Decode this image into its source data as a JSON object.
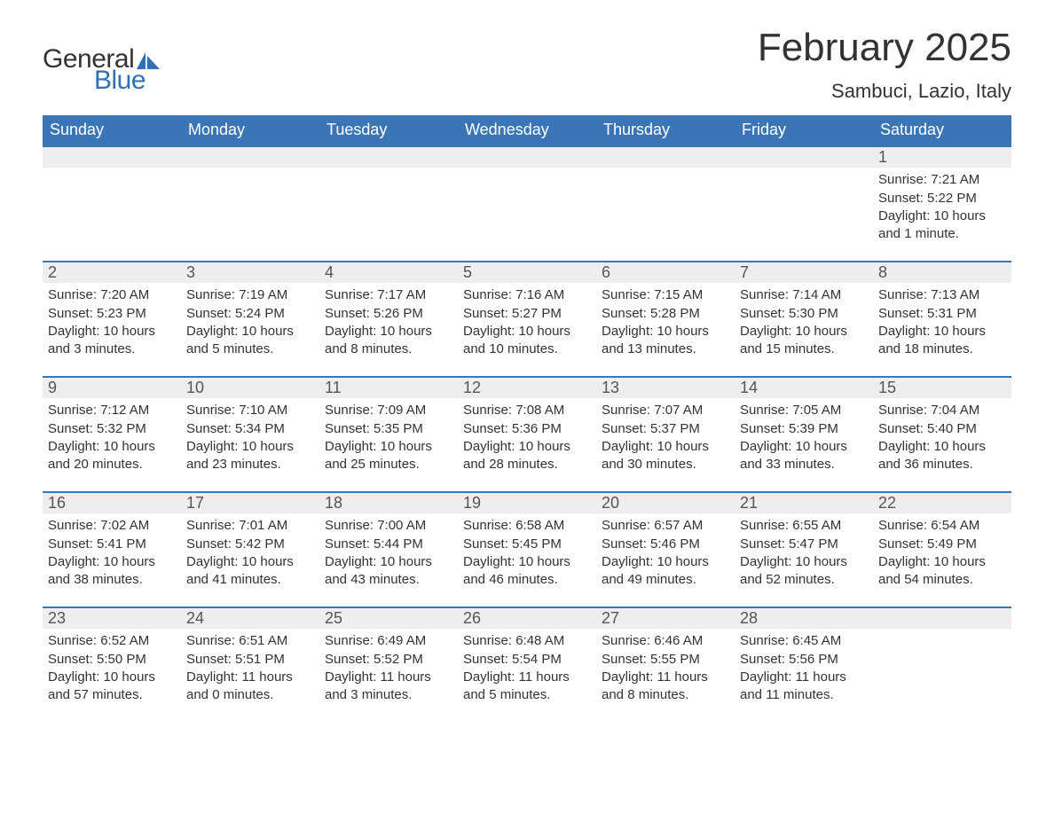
{
  "brand": {
    "general": "General",
    "blue": "Blue",
    "sail_color": "#2f6fb2"
  },
  "title": "February 2025",
  "location": "Sambuci, Lazio, Italy",
  "colors": {
    "header_bg": "#3a76b6",
    "header_text": "#ffffff",
    "strip_bg": "#eeeeee",
    "strip_border": "#3a76b6",
    "text": "#333333",
    "daynum": "#555555",
    "page_bg": "#ffffff"
  },
  "day_names": [
    "Sunday",
    "Monday",
    "Tuesday",
    "Wednesday",
    "Thursday",
    "Friday",
    "Saturday"
  ],
  "weeks": [
    [
      null,
      null,
      null,
      null,
      null,
      null,
      {
        "n": "1",
        "sunrise": "Sunrise: 7:21 AM",
        "sunset": "Sunset: 5:22 PM",
        "dl1": "Daylight: 10 hours",
        "dl2": "and 1 minute."
      }
    ],
    [
      {
        "n": "2",
        "sunrise": "Sunrise: 7:20 AM",
        "sunset": "Sunset: 5:23 PM",
        "dl1": "Daylight: 10 hours",
        "dl2": "and 3 minutes."
      },
      {
        "n": "3",
        "sunrise": "Sunrise: 7:19 AM",
        "sunset": "Sunset: 5:24 PM",
        "dl1": "Daylight: 10 hours",
        "dl2": "and 5 minutes."
      },
      {
        "n": "4",
        "sunrise": "Sunrise: 7:17 AM",
        "sunset": "Sunset: 5:26 PM",
        "dl1": "Daylight: 10 hours",
        "dl2": "and 8 minutes."
      },
      {
        "n": "5",
        "sunrise": "Sunrise: 7:16 AM",
        "sunset": "Sunset: 5:27 PM",
        "dl1": "Daylight: 10 hours",
        "dl2": "and 10 minutes."
      },
      {
        "n": "6",
        "sunrise": "Sunrise: 7:15 AM",
        "sunset": "Sunset: 5:28 PM",
        "dl1": "Daylight: 10 hours",
        "dl2": "and 13 minutes."
      },
      {
        "n": "7",
        "sunrise": "Sunrise: 7:14 AM",
        "sunset": "Sunset: 5:30 PM",
        "dl1": "Daylight: 10 hours",
        "dl2": "and 15 minutes."
      },
      {
        "n": "8",
        "sunrise": "Sunrise: 7:13 AM",
        "sunset": "Sunset: 5:31 PM",
        "dl1": "Daylight: 10 hours",
        "dl2": "and 18 minutes."
      }
    ],
    [
      {
        "n": "9",
        "sunrise": "Sunrise: 7:12 AM",
        "sunset": "Sunset: 5:32 PM",
        "dl1": "Daylight: 10 hours",
        "dl2": "and 20 minutes."
      },
      {
        "n": "10",
        "sunrise": "Sunrise: 7:10 AM",
        "sunset": "Sunset: 5:34 PM",
        "dl1": "Daylight: 10 hours",
        "dl2": "and 23 minutes."
      },
      {
        "n": "11",
        "sunrise": "Sunrise: 7:09 AM",
        "sunset": "Sunset: 5:35 PM",
        "dl1": "Daylight: 10 hours",
        "dl2": "and 25 minutes."
      },
      {
        "n": "12",
        "sunrise": "Sunrise: 7:08 AM",
        "sunset": "Sunset: 5:36 PM",
        "dl1": "Daylight: 10 hours",
        "dl2": "and 28 minutes."
      },
      {
        "n": "13",
        "sunrise": "Sunrise: 7:07 AM",
        "sunset": "Sunset: 5:37 PM",
        "dl1": "Daylight: 10 hours",
        "dl2": "and 30 minutes."
      },
      {
        "n": "14",
        "sunrise": "Sunrise: 7:05 AM",
        "sunset": "Sunset: 5:39 PM",
        "dl1": "Daylight: 10 hours",
        "dl2": "and 33 minutes."
      },
      {
        "n": "15",
        "sunrise": "Sunrise: 7:04 AM",
        "sunset": "Sunset: 5:40 PM",
        "dl1": "Daylight: 10 hours",
        "dl2": "and 36 minutes."
      }
    ],
    [
      {
        "n": "16",
        "sunrise": "Sunrise: 7:02 AM",
        "sunset": "Sunset: 5:41 PM",
        "dl1": "Daylight: 10 hours",
        "dl2": "and 38 minutes."
      },
      {
        "n": "17",
        "sunrise": "Sunrise: 7:01 AM",
        "sunset": "Sunset: 5:42 PM",
        "dl1": "Daylight: 10 hours",
        "dl2": "and 41 minutes."
      },
      {
        "n": "18",
        "sunrise": "Sunrise: 7:00 AM",
        "sunset": "Sunset: 5:44 PM",
        "dl1": "Daylight: 10 hours",
        "dl2": "and 43 minutes."
      },
      {
        "n": "19",
        "sunrise": "Sunrise: 6:58 AM",
        "sunset": "Sunset: 5:45 PM",
        "dl1": "Daylight: 10 hours",
        "dl2": "and 46 minutes."
      },
      {
        "n": "20",
        "sunrise": "Sunrise: 6:57 AM",
        "sunset": "Sunset: 5:46 PM",
        "dl1": "Daylight: 10 hours",
        "dl2": "and 49 minutes."
      },
      {
        "n": "21",
        "sunrise": "Sunrise: 6:55 AM",
        "sunset": "Sunset: 5:47 PM",
        "dl1": "Daylight: 10 hours",
        "dl2": "and 52 minutes."
      },
      {
        "n": "22",
        "sunrise": "Sunrise: 6:54 AM",
        "sunset": "Sunset: 5:49 PM",
        "dl1": "Daylight: 10 hours",
        "dl2": "and 54 minutes."
      }
    ],
    [
      {
        "n": "23",
        "sunrise": "Sunrise: 6:52 AM",
        "sunset": "Sunset: 5:50 PM",
        "dl1": "Daylight: 10 hours",
        "dl2": "and 57 minutes."
      },
      {
        "n": "24",
        "sunrise": "Sunrise: 6:51 AM",
        "sunset": "Sunset: 5:51 PM",
        "dl1": "Daylight: 11 hours",
        "dl2": "and 0 minutes."
      },
      {
        "n": "25",
        "sunrise": "Sunrise: 6:49 AM",
        "sunset": "Sunset: 5:52 PM",
        "dl1": "Daylight: 11 hours",
        "dl2": "and 3 minutes."
      },
      {
        "n": "26",
        "sunrise": "Sunrise: 6:48 AM",
        "sunset": "Sunset: 5:54 PM",
        "dl1": "Daylight: 11 hours",
        "dl2": "and 5 minutes."
      },
      {
        "n": "27",
        "sunrise": "Sunrise: 6:46 AM",
        "sunset": "Sunset: 5:55 PM",
        "dl1": "Daylight: 11 hours",
        "dl2": "and 8 minutes."
      },
      {
        "n": "28",
        "sunrise": "Sunrise: 6:45 AM",
        "sunset": "Sunset: 5:56 PM",
        "dl1": "Daylight: 11 hours",
        "dl2": "and 11 minutes."
      },
      null
    ]
  ]
}
